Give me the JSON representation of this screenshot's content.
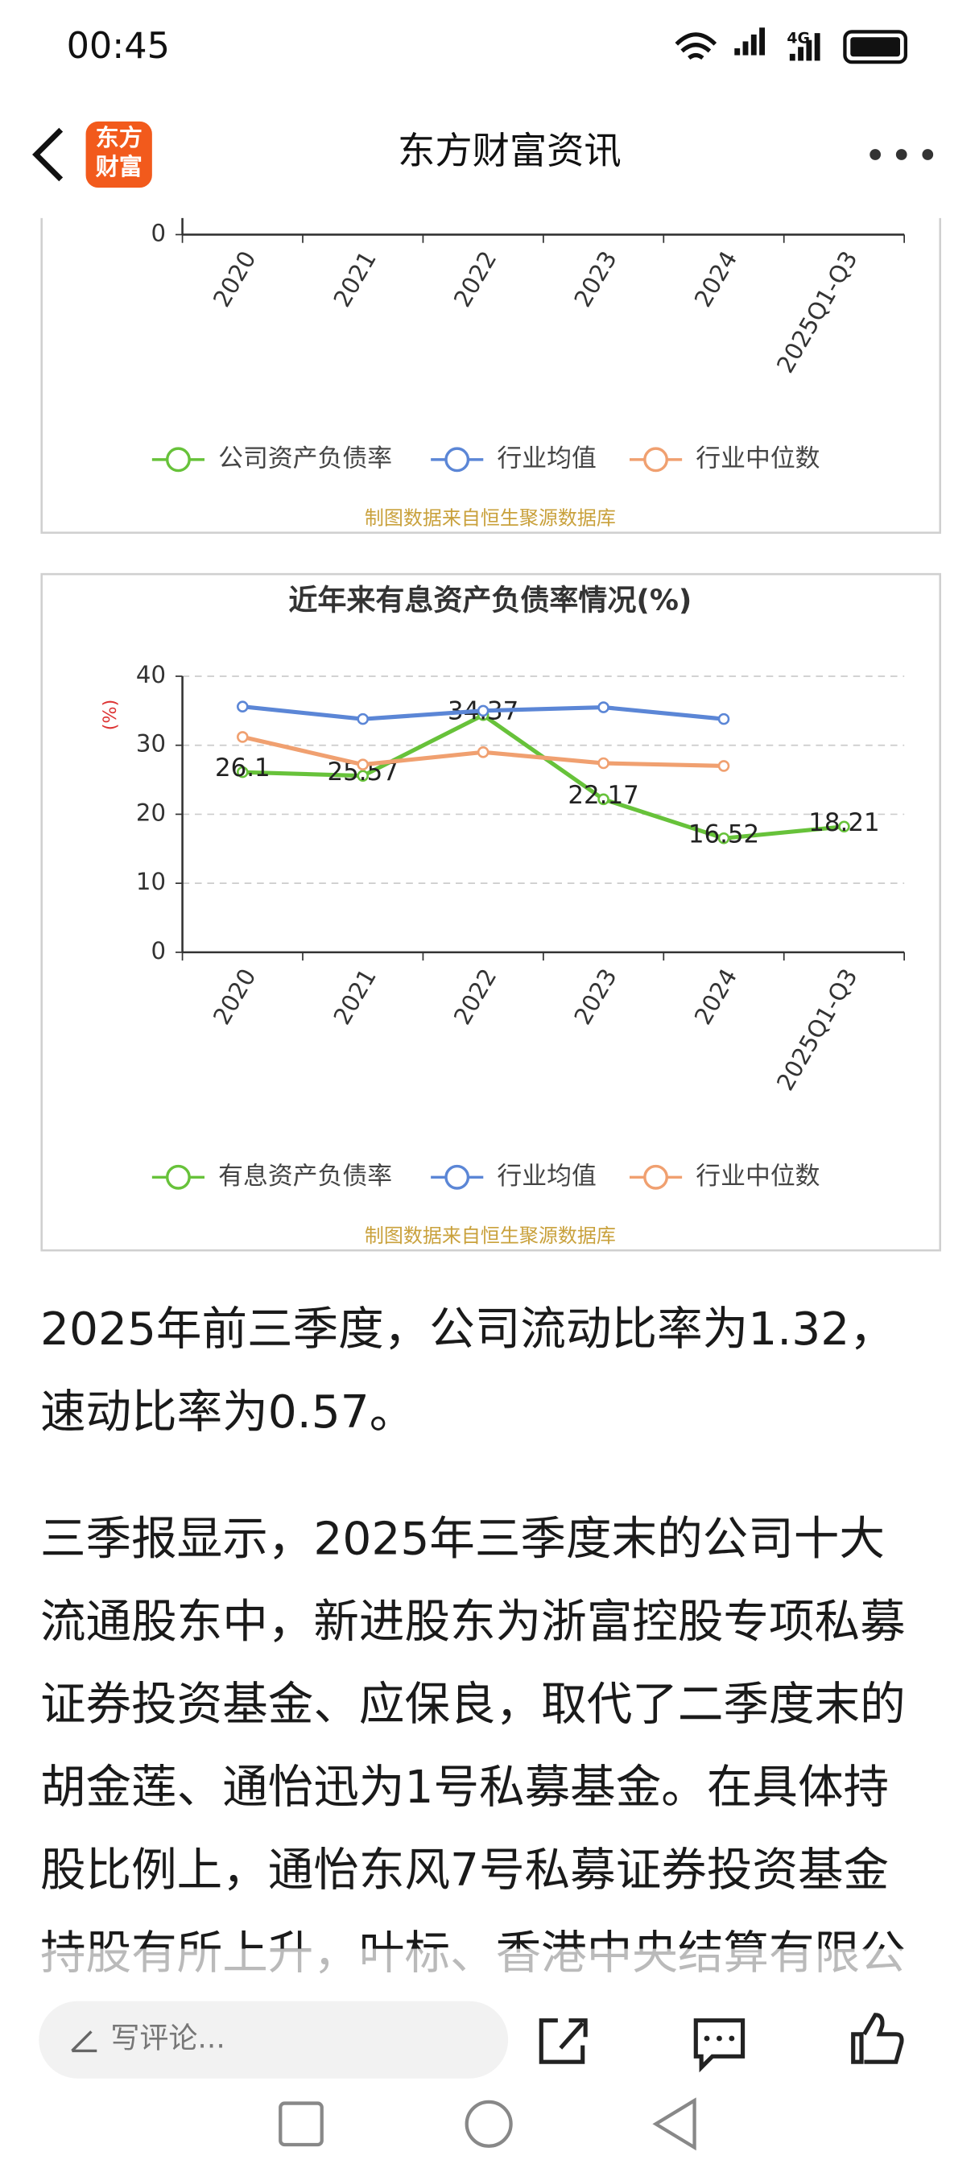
{
  "status_bar": {
    "time": "00:45",
    "network": "4G"
  },
  "header": {
    "logo_lines": [
      "东方",
      "财富"
    ],
    "title": "东方财富资讯"
  },
  "chart_data": [
    {
      "type": "line",
      "categories": [
        "2020",
        "2021",
        "2022",
        "2023",
        "2024",
        "2025Q1-Q3"
      ],
      "yticks": [
        0
      ],
      "series": [
        {
          "name": "公司资产负债率",
          "color": "#67c23a"
        },
        {
          "name": "行业均值",
          "color": "#5b86d6"
        },
        {
          "name": "行业中位数",
          "color": "#f0a070"
        }
      ],
      "source": "制图数据来自恒生聚源数据库"
    },
    {
      "type": "line",
      "title": "近年来有息资产负债率情况(%)",
      "y_label": "(%)",
      "categories": [
        "2020",
        "2021",
        "2022",
        "2023",
        "2024",
        "2025Q1-Q3"
      ],
      "ylim": [
        0,
        40
      ],
      "yticks": [
        0,
        10,
        20,
        30,
        40
      ],
      "grid": true,
      "series": [
        {
          "name": "有息资产负债率",
          "color": "#67c23a",
          "labels": true,
          "values": [
            26.1,
            25.57,
            34.37,
            22.17,
            16.52,
            18.21
          ]
        },
        {
          "name": "行业均值",
          "color": "#5b86d6",
          "values": [
            35.6,
            33.8,
            35,
            35.5,
            33.8,
            null
          ]
        },
        {
          "name": "行业中位数",
          "color": "#f0a070",
          "values": [
            31.2,
            27.2,
            29,
            27.4,
            27,
            null
          ]
        }
      ],
      "source": "制图数据来自恒生聚源数据库"
    }
  ],
  "article": {
    "paragraphs": [
      [
        "2025年前三季度，公司流动比率为1.32，",
        "速动比率为0.57。"
      ],
      [
        "三季报显示，2025年三季度末的公司十大",
        "流通股东中，新进股东为浙富控股专项私募",
        "证券投资基金、应保良，取代了二季度末的",
        "胡金莲、通怡迅为1号私募基金。在具体持",
        "股比例上，通怡东风7号私募证券投资基金",
        "持股有所上升，叶标、香港中央结算有限公"
      ]
    ]
  },
  "bottom_bar": {
    "comment_placeholder": "写评论..."
  }
}
